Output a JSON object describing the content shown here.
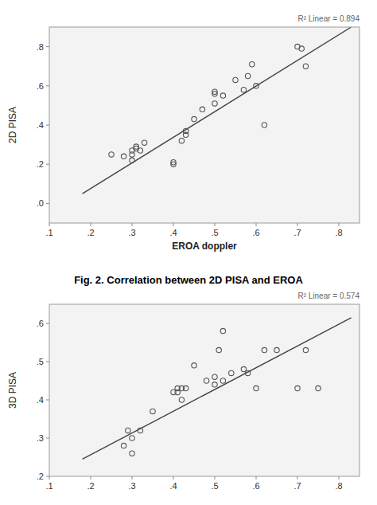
{
  "chart_data": [
    {
      "type": "scatter",
      "x_label": "EROA doppler",
      "y_label": "2D PISA",
      "annotations": [
        "R² Linear = 0.894"
      ],
      "xlim": [
        0.1,
        0.85
      ],
      "ylim": [
        -0.1,
        0.9
      ],
      "xticks": [
        {
          "value": 0.1,
          "label": ".1"
        },
        {
          "value": 0.2,
          "label": ".2"
        },
        {
          "value": 0.3,
          "label": ".3"
        },
        {
          "value": 0.4,
          "label": ".4"
        },
        {
          "value": 0.5,
          "label": ".5"
        },
        {
          "value": 0.6,
          "label": ".6"
        },
        {
          "value": 0.7,
          "label": ".7"
        },
        {
          "value": 0.8,
          "label": ".8"
        }
      ],
      "yticks": [
        {
          "value": 0.0,
          "label": ".0"
        },
        {
          "value": 0.2,
          "label": ".2"
        },
        {
          "value": 0.4,
          "label": ".4"
        },
        {
          "value": 0.6,
          "label": ".6"
        },
        {
          "value": 0.8,
          "label": ".8"
        }
      ],
      "series": [
        {
          "type": "scatter",
          "color": "#555555",
          "marker": "circle",
          "x": [
            0.25,
            0.28,
            0.3,
            0.3,
            0.3,
            0.31,
            0.31,
            0.32,
            0.33,
            0.4,
            0.4,
            0.42,
            0.43,
            0.43,
            0.45,
            0.47,
            0.5,
            0.5,
            0.5,
            0.52,
            0.55,
            0.57,
            0.58,
            0.59,
            0.6,
            0.62,
            0.7,
            0.71,
            0.72
          ],
          "values": [
            0.25,
            0.24,
            0.22,
            0.25,
            0.27,
            0.28,
            0.29,
            0.27,
            0.31,
            0.2,
            0.21,
            0.32,
            0.35,
            0.37,
            0.43,
            0.48,
            0.57,
            0.56,
            0.51,
            0.55,
            0.63,
            0.58,
            0.65,
            0.71,
            0.6,
            0.4,
            0.8,
            0.79,
            0.7
          ]
        },
        {
          "type": "line",
          "color": "#444444",
          "x": [
            0.18,
            0.83
          ],
          "values": [
            0.05,
            0.9
          ]
        }
      ]
    },
    {
      "type": "scatter",
      "title": "Fig. 2. Correlation between 2D PISA and EROA",
      "y_label": "3D PISA",
      "annotations": [
        "R² Linear = 0.574"
      ],
      "xlim": [
        0.1,
        0.85
      ],
      "ylim": [
        0.2,
        0.65
      ],
      "xticks": [
        {
          "value": 0.1,
          "label": ".1"
        },
        {
          "value": 0.2,
          "label": ".2"
        },
        {
          "value": 0.3,
          "label": ".3"
        },
        {
          "value": 0.4,
          "label": ".4"
        },
        {
          "value": 0.5,
          "label": ".5"
        },
        {
          "value": 0.6,
          "label": ".6"
        },
        {
          "value": 0.7,
          "label": ".7"
        },
        {
          "value": 0.8,
          "label": ".8"
        }
      ],
      "yticks": [
        {
          "value": 0.2,
          "label": ".2"
        },
        {
          "value": 0.3,
          "label": ".3"
        },
        {
          "value": 0.4,
          "label": ".4"
        },
        {
          "value": 0.5,
          "label": ".5"
        },
        {
          "value": 0.6,
          "label": ".6"
        }
      ],
      "series": [
        {
          "type": "scatter",
          "color": "#555555",
          "marker": "circle",
          "x": [
            0.28,
            0.29,
            0.3,
            0.3,
            0.32,
            0.35,
            0.4,
            0.41,
            0.41,
            0.42,
            0.42,
            0.43,
            0.45,
            0.48,
            0.5,
            0.5,
            0.51,
            0.52,
            0.52,
            0.54,
            0.57,
            0.58,
            0.6,
            0.62,
            0.65,
            0.7,
            0.72,
            0.75
          ],
          "values": [
            0.28,
            0.32,
            0.26,
            0.3,
            0.32,
            0.37,
            0.42,
            0.43,
            0.42,
            0.43,
            0.4,
            0.43,
            0.49,
            0.45,
            0.44,
            0.46,
            0.53,
            0.58,
            0.45,
            0.47,
            0.48,
            0.47,
            0.43,
            0.53,
            0.53,
            0.43,
            0.53,
            0.43
          ]
        },
        {
          "type": "line",
          "color": "#444444",
          "x": [
            0.18,
            0.83
          ],
          "values": [
            0.245,
            0.615
          ]
        }
      ]
    }
  ]
}
